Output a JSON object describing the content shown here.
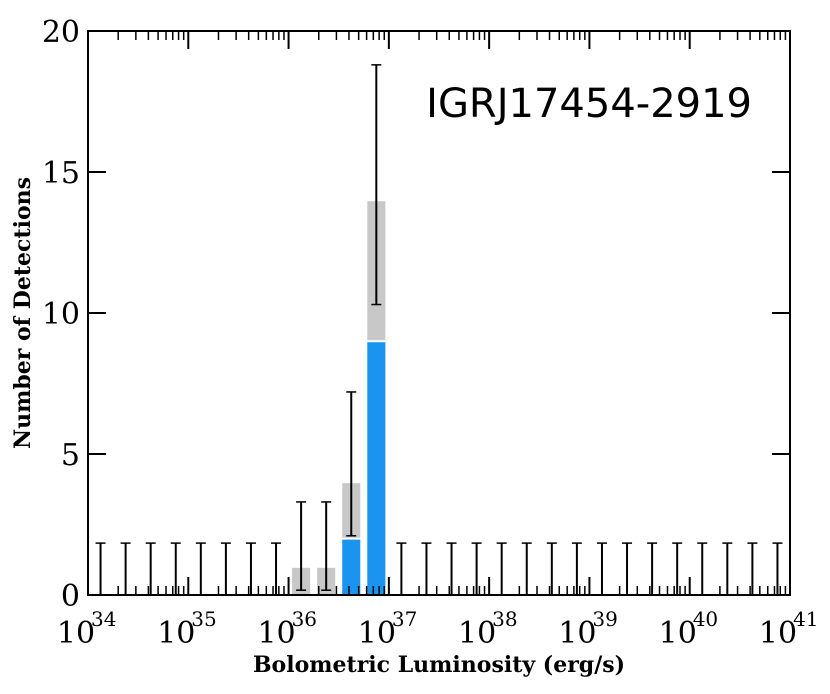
{
  "chart_data": {
    "type": "bar",
    "title": "IGRJ17454-2919",
    "xlabel": "Bolometric Luminosity (erg/s)",
    "ylabel": "Number of Detections",
    "x_scale": "log",
    "xlim_exponent": [
      34,
      41
    ],
    "ylim": [
      0,
      20
    ],
    "x_tick_labels": [
      {
        "base": "10",
        "exp": "34"
      },
      {
        "base": "10",
        "exp": "35"
      },
      {
        "base": "10",
        "exp": "36"
      },
      {
        "base": "10",
        "exp": "37"
      },
      {
        "base": "10",
        "exp": "38"
      },
      {
        "base": "10",
        "exp": "39"
      },
      {
        "base": "10",
        "exp": "40"
      },
      {
        "base": "10",
        "exp": "41"
      }
    ],
    "y_ticks": [
      0,
      5,
      10,
      15,
      20
    ],
    "bins_per_decade": 4,
    "series": [
      {
        "color": "#c8c8c8",
        "bins": [
          {
            "log_lo": 36.0,
            "log_hi": 36.25,
            "value": 1
          },
          {
            "log_lo": 36.25,
            "log_hi": 36.5,
            "value": 1
          },
          {
            "log_lo": 36.5,
            "log_hi": 36.75,
            "value": 4
          },
          {
            "log_lo": 36.75,
            "log_hi": 37.0,
            "value": 14
          }
        ]
      },
      {
        "color": "#1a94ee",
        "bins": [
          {
            "log_lo": 36.5,
            "log_hi": 36.75,
            "value": 2
          },
          {
            "log_lo": 36.75,
            "log_hi": 37.0,
            "value": 9
          }
        ]
      }
    ],
    "error_bars": [
      {
        "log_center": 34.125,
        "lo": 0,
        "hi": 1.84
      },
      {
        "log_center": 34.375,
        "lo": 0,
        "hi": 1.84
      },
      {
        "log_center": 34.625,
        "lo": 0,
        "hi": 1.84
      },
      {
        "log_center": 34.875,
        "lo": 0,
        "hi": 1.84
      },
      {
        "log_center": 35.125,
        "lo": 0,
        "hi": 1.84
      },
      {
        "log_center": 35.375,
        "lo": 0,
        "hi": 1.84
      },
      {
        "log_center": 35.625,
        "lo": 0,
        "hi": 1.84
      },
      {
        "log_center": 35.875,
        "lo": 0,
        "hi": 1.84
      },
      {
        "log_center": 36.125,
        "lo": 0.17,
        "hi": 3.3
      },
      {
        "log_center": 36.375,
        "lo": 0.17,
        "hi": 3.3
      },
      {
        "log_center": 36.625,
        "lo": 2.1,
        "hi": 7.2
      },
      {
        "log_center": 36.875,
        "lo": 10.3,
        "hi": 18.8
      },
      {
        "log_center": 37.125,
        "lo": 0,
        "hi": 1.84
      },
      {
        "log_center": 37.375,
        "lo": 0,
        "hi": 1.84
      },
      {
        "log_center": 37.625,
        "lo": 0,
        "hi": 1.84
      },
      {
        "log_center": 37.875,
        "lo": 0,
        "hi": 1.84
      },
      {
        "log_center": 38.125,
        "lo": 0,
        "hi": 1.84
      },
      {
        "log_center": 38.375,
        "lo": 0,
        "hi": 1.84
      },
      {
        "log_center": 38.625,
        "lo": 0,
        "hi": 1.84
      },
      {
        "log_center": 38.875,
        "lo": 0,
        "hi": 1.84
      },
      {
        "log_center": 39.125,
        "lo": 0,
        "hi": 1.84
      },
      {
        "log_center": 39.375,
        "lo": 0,
        "hi": 1.84
      },
      {
        "log_center": 39.625,
        "lo": 0,
        "hi": 1.84
      },
      {
        "log_center": 39.875,
        "lo": 0,
        "hi": 1.84
      },
      {
        "log_center": 40.125,
        "lo": 0,
        "hi": 1.84
      },
      {
        "log_center": 40.375,
        "lo": 0,
        "hi": 1.84
      },
      {
        "log_center": 40.625,
        "lo": 0,
        "hi": 1.84
      },
      {
        "log_center": 40.875,
        "lo": 0,
        "hi": 1.84
      }
    ],
    "grid": false,
    "legend": "none",
    "axis_color": "#000000"
  }
}
